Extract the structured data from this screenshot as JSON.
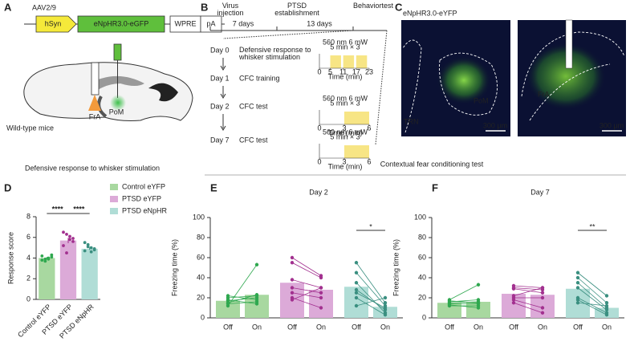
{
  "figure": {
    "A": {
      "letter": "A",
      "vector": "AAV2/9",
      "promoter": "hSyn",
      "gene": "eNpHR3.0-eGFP",
      "wpre": "WPRE",
      "pa": "pA",
      "site_stim": "FrA",
      "site_virus": "PoM",
      "animal": "Wild-type mice"
    },
    "B": {
      "letter": "B",
      "milestones": [
        "Virus injection",
        "PTSD establishment",
        "Behavior test"
      ],
      "intervals": [
        "7 days",
        "13 days"
      ],
      "days": [
        {
          "day": "Day 0",
          "task": "Defensive response to whisker stimulation",
          "protocol": {
            "laser": "560 nm 6 mW",
            "duration": "5 min × 3",
            "xlabel": "Time (min)",
            "xticks": [
              0,
              5,
              11,
              17,
              23
            ],
            "light": [
              [
                5,
                10
              ],
              [
                11,
                16
              ],
              [
                17,
                22
              ]
            ]
          }
        },
        {
          "day": "Day 1",
          "task": "CFC training"
        },
        {
          "day": "Day 2",
          "task": "CFC test",
          "protocol": {
            "laser": "560 nm 6 mW",
            "duration": "5 min × 3",
            "xlabel": "Time (min)",
            "xticks": [
              0,
              3,
              6
            ],
            "light": [
              [
                3,
                6
              ]
            ]
          }
        },
        {
          "day": "Day 7",
          "task": "CFC test",
          "protocol": {
            "laser": "560 nm 6 mW",
            "duration": "5 min × 3",
            "xlabel": "Time (min)",
            "xticks": [
              0,
              3,
              6
            ],
            "light": [
              [
                3,
                6
              ]
            ]
          }
        }
      ]
    },
    "C": {
      "letter": "C",
      "construct": "eNpHR3.0-eYFP",
      "regions": [
        "TRN",
        "PoM",
        "FrA"
      ],
      "scale_bar": "300 μm"
    }
  },
  "section_titles": [
    "Defensive response to whisker stimulation",
    "Contextual fear conditioning test"
  ],
  "chart_data": [
    {
      "type": "bar",
      "panel": "D",
      "ylabel": "Response score",
      "categories": [
        "Control eYFP",
        "PTSD eYFP",
        "PTSD eNpHR"
      ],
      "values": [
        4.0,
        5.7,
        4.9
      ],
      "errors": [
        0.1,
        0.25,
        0.12
      ],
      "points": [
        [
          3.8,
          3.9,
          4.0,
          4.1,
          4.2,
          3.7,
          3.9,
          4.3
        ],
        [
          6.5,
          6.3,
          5.8,
          5.6,
          5.2,
          4.5,
          6.1,
          5.9
        ],
        [
          5.5,
          5.3,
          5.0,
          4.8,
          4.7,
          5.1,
          4.6,
          4.9
        ]
      ],
      "colors": [
        "#a8d8a0",
        "#dcaad8",
        "#b0ddd6"
      ],
      "point_colors": [
        "#2fa84f",
        "#a2308f",
        "#3a8f80"
      ],
      "significance": [
        "****",
        "****"
      ],
      "ylim": [
        0,
        8
      ],
      "yticks": [
        0,
        2,
        4,
        6,
        8
      ],
      "legend": true
    },
    {
      "type": "paired_bar",
      "panel": "E",
      "title": "Day 2",
      "ylabel": "Freezing time (%)",
      "categories": [
        "Off",
        "On"
      ],
      "groups": [
        {
          "color": "#a8d8a0",
          "point_color": "#2fa84f",
          "values": [
            17,
            23
          ],
          "points": [
            [
              12,
              15,
              17,
              22,
              20,
              14,
              18
            ],
            [
              53,
              23,
              20,
              18,
              22,
              16,
              14
            ]
          ]
        },
        {
          "color": "#dcaad8",
          "point_color": "#a2308f",
          "values": [
            35,
            28
          ],
          "points": [
            [
              60,
              55,
              38,
              30,
              25,
              20,
              18
            ],
            [
              42,
              40,
              30,
              25,
              20,
              10,
              30
            ]
          ]
        },
        {
          "color": "#b0ddd6",
          "point_color": "#3a8f80",
          "values": [
            31,
            11
          ],
          "points": [
            [
              55,
              45,
              35,
              28,
              25,
              20,
              12
            ],
            [
              15,
              12,
              5,
              8,
              10,
              3,
              20
            ]
          ]
        }
      ],
      "significance": [
        null,
        null,
        "*"
      ],
      "ylim": [
        0,
        100
      ],
      "yticks": [
        0,
        20,
        40,
        60,
        80,
        100
      ]
    },
    {
      "type": "paired_bar",
      "panel": "F",
      "title": "Day 7",
      "ylabel": "Freezing time (%)",
      "categories": [
        "Off",
        "On"
      ],
      "groups": [
        {
          "color": "#a8d8a0",
          "point_color": "#2fa84f",
          "values": [
            15,
            16
          ],
          "points": [
            [
              18,
              16,
              15,
              14,
              12,
              17,
              13
            ],
            [
              33,
              18,
              16,
              14,
              12,
              15,
              10
            ]
          ]
        },
        {
          "color": "#dcaad8",
          "point_color": "#a2308f",
          "values": [
            24,
            23
          ],
          "points": [
            [
              32,
              30,
              29,
              20,
              18,
              15,
              22
            ],
            [
              30,
              28,
              25,
              20,
              10,
              5,
              30
            ]
          ]
        },
        {
          "color": "#b0ddd6",
          "point_color": "#3a8f80",
          "values": [
            29,
            10
          ],
          "points": [
            [
              45,
              40,
              35,
              30,
              20,
              18,
              15
            ],
            [
              22,
              15,
              10,
              8,
              5,
              3,
              12
            ]
          ]
        }
      ],
      "significance": [
        null,
        null,
        "**"
      ],
      "ylim": [
        0,
        100
      ],
      "yticks": [
        0,
        20,
        40,
        60,
        80,
        100
      ]
    }
  ]
}
